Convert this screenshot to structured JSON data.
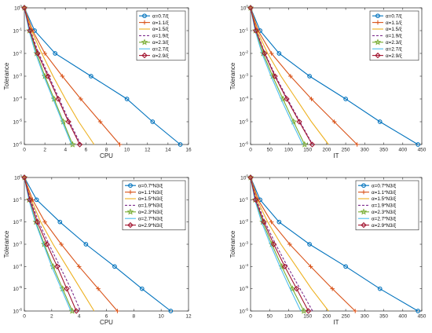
{
  "chart_data": [
    {
      "type": "line",
      "xlabel": "CPU",
      "ylabel": "Tolerance",
      "xlim": [
        0,
        16
      ],
      "xticks": [
        "0",
        "2",
        "4",
        "6",
        "8",
        "10",
        "12",
        "14",
        "16"
      ],
      "yscale": "log",
      "ylim": [
        1e-06,
        1
      ],
      "yticks": [
        "10-6",
        "10-5",
        "10-4",
        "10-3",
        "10-2",
        "10-1",
        "100"
      ],
      "grid": false,
      "legend_position": "top-right",
      "series": [
        {
          "name": "α=0.7/ξ",
          "color": "#0072BD",
          "marker": "circle",
          "dash": false,
          "x": [
            0,
            1,
            3,
            6.5,
            10,
            12.5,
            15.2
          ],
          "y": [
            1,
            0.1,
            0.01,
            0.001,
            0.0001,
            1e-05,
            1e-06
          ]
        },
        {
          "name": "α=1.1/ξ",
          "color": "#D95319",
          "marker": "plus",
          "dash": false,
          "x": [
            0,
            0.8,
            2,
            3.7,
            5.5,
            7.4,
            9.3
          ],
          "y": [
            1,
            0.1,
            0.01,
            0.001,
            0.0001,
            1e-05,
            1e-06
          ]
        },
        {
          "name": "α=1.5/ξ",
          "color": "#EDB120",
          "marker": "none",
          "dash": false,
          "x": [
            0,
            0.7,
            1.7,
            2.8,
            4,
            5.3,
            6.8
          ],
          "y": [
            1,
            0.1,
            0.01,
            0.001,
            0.0001,
            1e-05,
            1e-06
          ]
        },
        {
          "name": "α=1.9/ξ",
          "color": "#7E2F8E",
          "marker": "none",
          "dash": true,
          "x": [
            0,
            0.6,
            1.4,
            2.4,
            3.4,
            4.4,
            5.5
          ],
          "y": [
            1,
            0.1,
            0.01,
            0.001,
            0.0001,
            1e-05,
            1e-06
          ]
        },
        {
          "name": "α=2.3/ξ",
          "color": "#77AC30",
          "marker": "star",
          "dash": false,
          "x": [
            0,
            0.5,
            1.2,
            2,
            2.9,
            3.8,
            4.7
          ],
          "y": [
            1,
            0.1,
            0.01,
            0.001,
            0.0001,
            1e-05,
            1e-06
          ]
        },
        {
          "name": "α=2.7/ξ",
          "color": "#4DBEEE",
          "marker": "none",
          "dash": false,
          "x": [
            0,
            0.45,
            1.1,
            1.9,
            2.8,
            3.7,
            4.6
          ],
          "y": [
            1,
            0.1,
            0.01,
            0.001,
            0.0001,
            1e-05,
            1e-06
          ]
        },
        {
          "name": "α=2.9/ξ",
          "color": "#A2142F",
          "marker": "diamond",
          "dash": false,
          "x": [
            0,
            0.55,
            1.3,
            2.3,
            3.3,
            4.3,
            5.4
          ],
          "y": [
            1,
            0.1,
            0.01,
            0.001,
            0.0001,
            1e-05,
            1e-06
          ]
        }
      ]
    },
    {
      "type": "line",
      "xlabel": "IT",
      "ylabel": "Tolerance",
      "xlim": [
        0,
        450
      ],
      "xticks": [
        "0",
        "50",
        "100",
        "150",
        "200",
        "250",
        "300",
        "350",
        "400",
        "450"
      ],
      "yscale": "log",
      "ylim": [
        1e-06,
        1
      ],
      "yticks": [
        "10-6",
        "10-5",
        "10-4",
        "10-3",
        "10-2",
        "10-1",
        "100"
      ],
      "grid": false,
      "legend_position": "top-right",
      "series": [
        {
          "name": "α=0.7/ξ",
          "color": "#0072BD",
          "marker": "circle",
          "dash": false,
          "x": [
            0,
            25,
            75,
            155,
            250,
            340,
            440
          ],
          "y": [
            1,
            0.1,
            0.01,
            0.001,
            0.0001,
            1e-05,
            1e-06
          ]
        },
        {
          "name": "α=1.1/ξ",
          "color": "#D95319",
          "marker": "plus",
          "dash": false,
          "x": [
            0,
            20,
            55,
            105,
            160,
            220,
            280
          ],
          "y": [
            1,
            0.1,
            0.01,
            0.001,
            0.0001,
            1e-05,
            1e-06
          ]
        },
        {
          "name": "α=1.5/ξ",
          "color": "#EDB120",
          "marker": "none",
          "dash": false,
          "x": [
            0,
            17,
            45,
            80,
            120,
            160,
            205
          ],
          "y": [
            1,
            0.1,
            0.01,
            0.001,
            0.0001,
            1e-05,
            1e-06
          ]
        },
        {
          "name": "α=1.9/ξ",
          "color": "#7E2F8E",
          "marker": "none",
          "dash": true,
          "x": [
            0,
            15,
            38,
            66,
            97,
            130,
            163
          ],
          "y": [
            1,
            0.1,
            0.01,
            0.001,
            0.0001,
            1e-05,
            1e-06
          ]
        },
        {
          "name": "α=2.3/ξ",
          "color": "#77AC30",
          "marker": "star",
          "dash": false,
          "x": [
            0,
            13,
            33,
            58,
            85,
            113,
            142
          ],
          "y": [
            1,
            0.1,
            0.01,
            0.001,
            0.0001,
            1e-05,
            1e-06
          ]
        },
        {
          "name": "α=2.7/ξ",
          "color": "#4DBEEE",
          "marker": "none",
          "dash": false,
          "x": [
            0,
            12,
            30,
            54,
            80,
            108,
            137
          ],
          "y": [
            1,
            0.1,
            0.01,
            0.001,
            0.0001,
            1e-05,
            1e-06
          ]
        },
        {
          "name": "α=2.9/ξ",
          "color": "#A2142F",
          "marker": "diamond",
          "dash": false,
          "x": [
            0,
            14,
            37,
            64,
            95,
            128,
            162
          ],
          "y": [
            1,
            0.1,
            0.01,
            0.001,
            0.0001,
            1e-05,
            1e-06
          ]
        }
      ]
    },
    {
      "type": "line",
      "xlabel": "CPU",
      "ylabel": "Tolerance",
      "xlim": [
        0,
        12
      ],
      "xticks": [
        "0",
        "2",
        "4",
        "6",
        "8",
        "10",
        "12"
      ],
      "yscale": "log",
      "ylim": [
        1e-06,
        1
      ],
      "yticks": [
        "10-6",
        "10-5",
        "10-4",
        "10-3",
        "10-2",
        "10-1",
        "100"
      ],
      "grid": false,
      "legend_position": "top-right",
      "series": [
        {
          "name": "α=0.7*N3/ξ",
          "color": "#0072BD",
          "marker": "circle",
          "dash": false,
          "x": [
            0,
            0.9,
            2.6,
            4.5,
            6.6,
            8.6,
            10.7
          ],
          "y": [
            1,
            0.1,
            0.01,
            0.001,
            0.0001,
            1e-05,
            1e-06
          ]
        },
        {
          "name": "α=1.1*N3/ξ",
          "color": "#D95319",
          "marker": "plus",
          "dash": false,
          "x": [
            0,
            0.6,
            1.5,
            2.7,
            4,
            5.4,
            6.8
          ],
          "y": [
            1,
            0.1,
            0.01,
            0.001,
            0.0001,
            1e-05,
            1e-06
          ]
        },
        {
          "name": "α=1.5*N3/ξ",
          "color": "#EDB120",
          "marker": "none",
          "dash": false,
          "x": [
            0,
            0.5,
            1.2,
            2.1,
            3.1,
            4.1,
            5.1
          ],
          "y": [
            1,
            0.1,
            0.01,
            0.001,
            0.0001,
            1e-05,
            1e-06
          ]
        },
        {
          "name": "α=1.9*N3/ξ",
          "color": "#7E2F8E",
          "marker": "none",
          "dash": true,
          "x": [
            0,
            0.45,
            1.05,
            1.8,
            2.6,
            3.4,
            4.1
          ],
          "y": [
            1,
            0.1,
            0.01,
            0.001,
            0.0001,
            1e-05,
            1e-06
          ]
        },
        {
          "name": "α=2.3*N3/ξ",
          "color": "#77AC30",
          "marker": "star",
          "dash": false,
          "x": [
            0,
            0.35,
            0.85,
            1.45,
            2.1,
            2.8,
            3.5
          ],
          "y": [
            1,
            0.1,
            0.01,
            0.001,
            0.0001,
            1e-05,
            1e-06
          ]
        },
        {
          "name": "α=2.7*N3/ξ",
          "color": "#4DBEEE",
          "marker": "none",
          "dash": false,
          "x": [
            0,
            0.33,
            0.8,
            1.4,
            2.0,
            2.7,
            3.4
          ],
          "y": [
            1,
            0.1,
            0.01,
            0.001,
            0.0001,
            1e-05,
            1e-06
          ]
        },
        {
          "name": "α=2.9*N3/ξ",
          "color": "#A2142F",
          "marker": "diamond",
          "dash": false,
          "x": [
            0,
            0.4,
            0.95,
            1.65,
            2.4,
            3.1,
            3.8
          ],
          "y": [
            1,
            0.1,
            0.01,
            0.001,
            0.0001,
            1e-05,
            1e-06
          ]
        }
      ]
    },
    {
      "type": "line",
      "xlabel": "IT",
      "ylabel": "Tolerance",
      "xlim": [
        0,
        450
      ],
      "xticks": [
        "0",
        "50",
        "100",
        "150",
        "200",
        "250",
        "300",
        "350",
        "400",
        "450"
      ],
      "yscale": "log",
      "ylim": [
        1e-06,
        1
      ],
      "yticks": [
        "10-6",
        "10-5",
        "10-4",
        "10-3",
        "10-2",
        "10-1",
        "100"
      ],
      "grid": false,
      "legend_position": "top-right",
      "series": [
        {
          "name": "α=0.7*N3/ξ",
          "color": "#0072BD",
          "marker": "circle",
          "dash": false,
          "x": [
            0,
            25,
            75,
            155,
            250,
            340,
            440
          ],
          "y": [
            1,
            0.1,
            0.01,
            0.001,
            0.0001,
            1e-05,
            1e-06
          ]
        },
        {
          "name": "α=1.1*N3/ξ",
          "color": "#D95319",
          "marker": "plus",
          "dash": false,
          "x": [
            0,
            20,
            55,
            103,
            158,
            215,
            275
          ],
          "y": [
            1,
            0.1,
            0.01,
            0.001,
            0.0001,
            1e-05,
            1e-06
          ]
        },
        {
          "name": "α=1.5*N3/ξ",
          "color": "#EDB120",
          "marker": "none",
          "dash": false,
          "x": [
            0,
            17,
            45,
            80,
            120,
            160,
            205
          ],
          "y": [
            1,
            0.1,
            0.01,
            0.001,
            0.0001,
            1e-05,
            1e-06
          ]
        },
        {
          "name": "α=1.9*N3/ξ",
          "color": "#7E2F8E",
          "marker": "none",
          "dash": true,
          "x": [
            0,
            15,
            38,
            66,
            97,
            130,
            163
          ],
          "y": [
            1,
            0.1,
            0.01,
            0.001,
            0.0001,
            1e-05,
            1e-06
          ]
        },
        {
          "name": "α=2.3*N3/ξ",
          "color": "#77AC30",
          "marker": "star",
          "dash": false,
          "x": [
            0,
            12,
            32,
            56,
            82,
            110,
            140
          ],
          "y": [
            1,
            0.1,
            0.01,
            0.001,
            0.0001,
            1e-05,
            1e-06
          ]
        },
        {
          "name": "α=2.7*N3/ξ",
          "color": "#4DBEEE",
          "marker": "none",
          "dash": false,
          "x": [
            0,
            11,
            29,
            52,
            77,
            104,
            132
          ],
          "y": [
            1,
            0.1,
            0.01,
            0.001,
            0.0001,
            1e-05,
            1e-06
          ]
        },
        {
          "name": "α=2.9*N3/ξ",
          "color": "#A2142F",
          "marker": "diamond",
          "dash": false,
          "x": [
            0,
            13,
            35,
            61,
            90,
            121,
            152
          ],
          "y": [
            1,
            0.1,
            0.01,
            0.001,
            0.0001,
            1e-05,
            1e-06
          ]
        }
      ]
    }
  ]
}
